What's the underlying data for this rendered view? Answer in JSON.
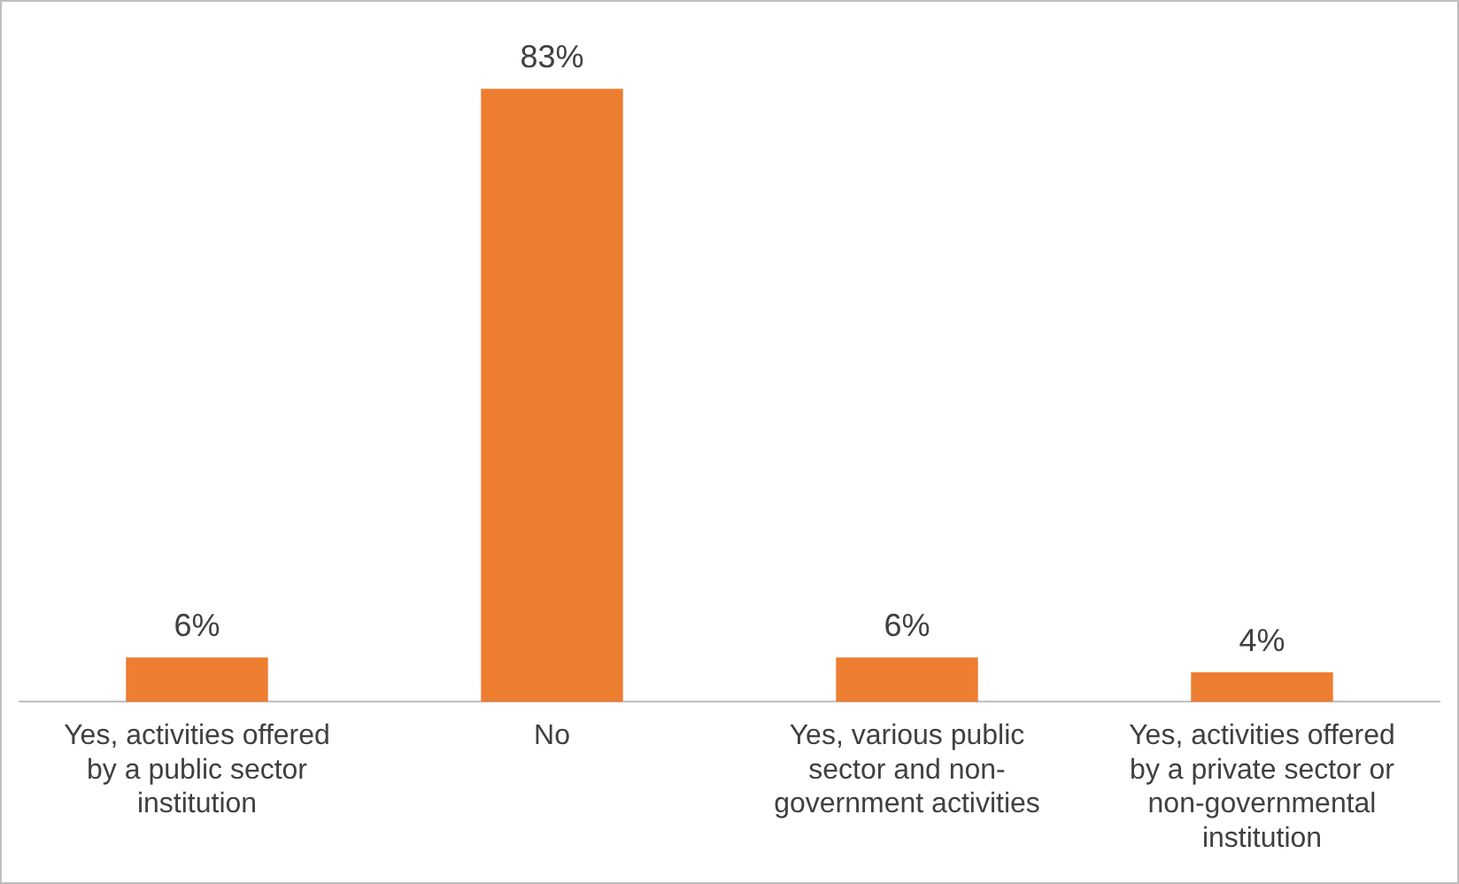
{
  "chart_data": {
    "type": "bar",
    "categories": [
      "Yes, activities offered by a public sector institution",
      "No",
      "Yes, various public sector and non-government activities",
      "Yes, activities offered by a private sector or non-governmental institution"
    ],
    "values": [
      6,
      83,
      6,
      4
    ],
    "color": "#ed7d31",
    "value_labels": [
      "6%",
      "83%",
      "6%",
      "4%"
    ]
  }
}
